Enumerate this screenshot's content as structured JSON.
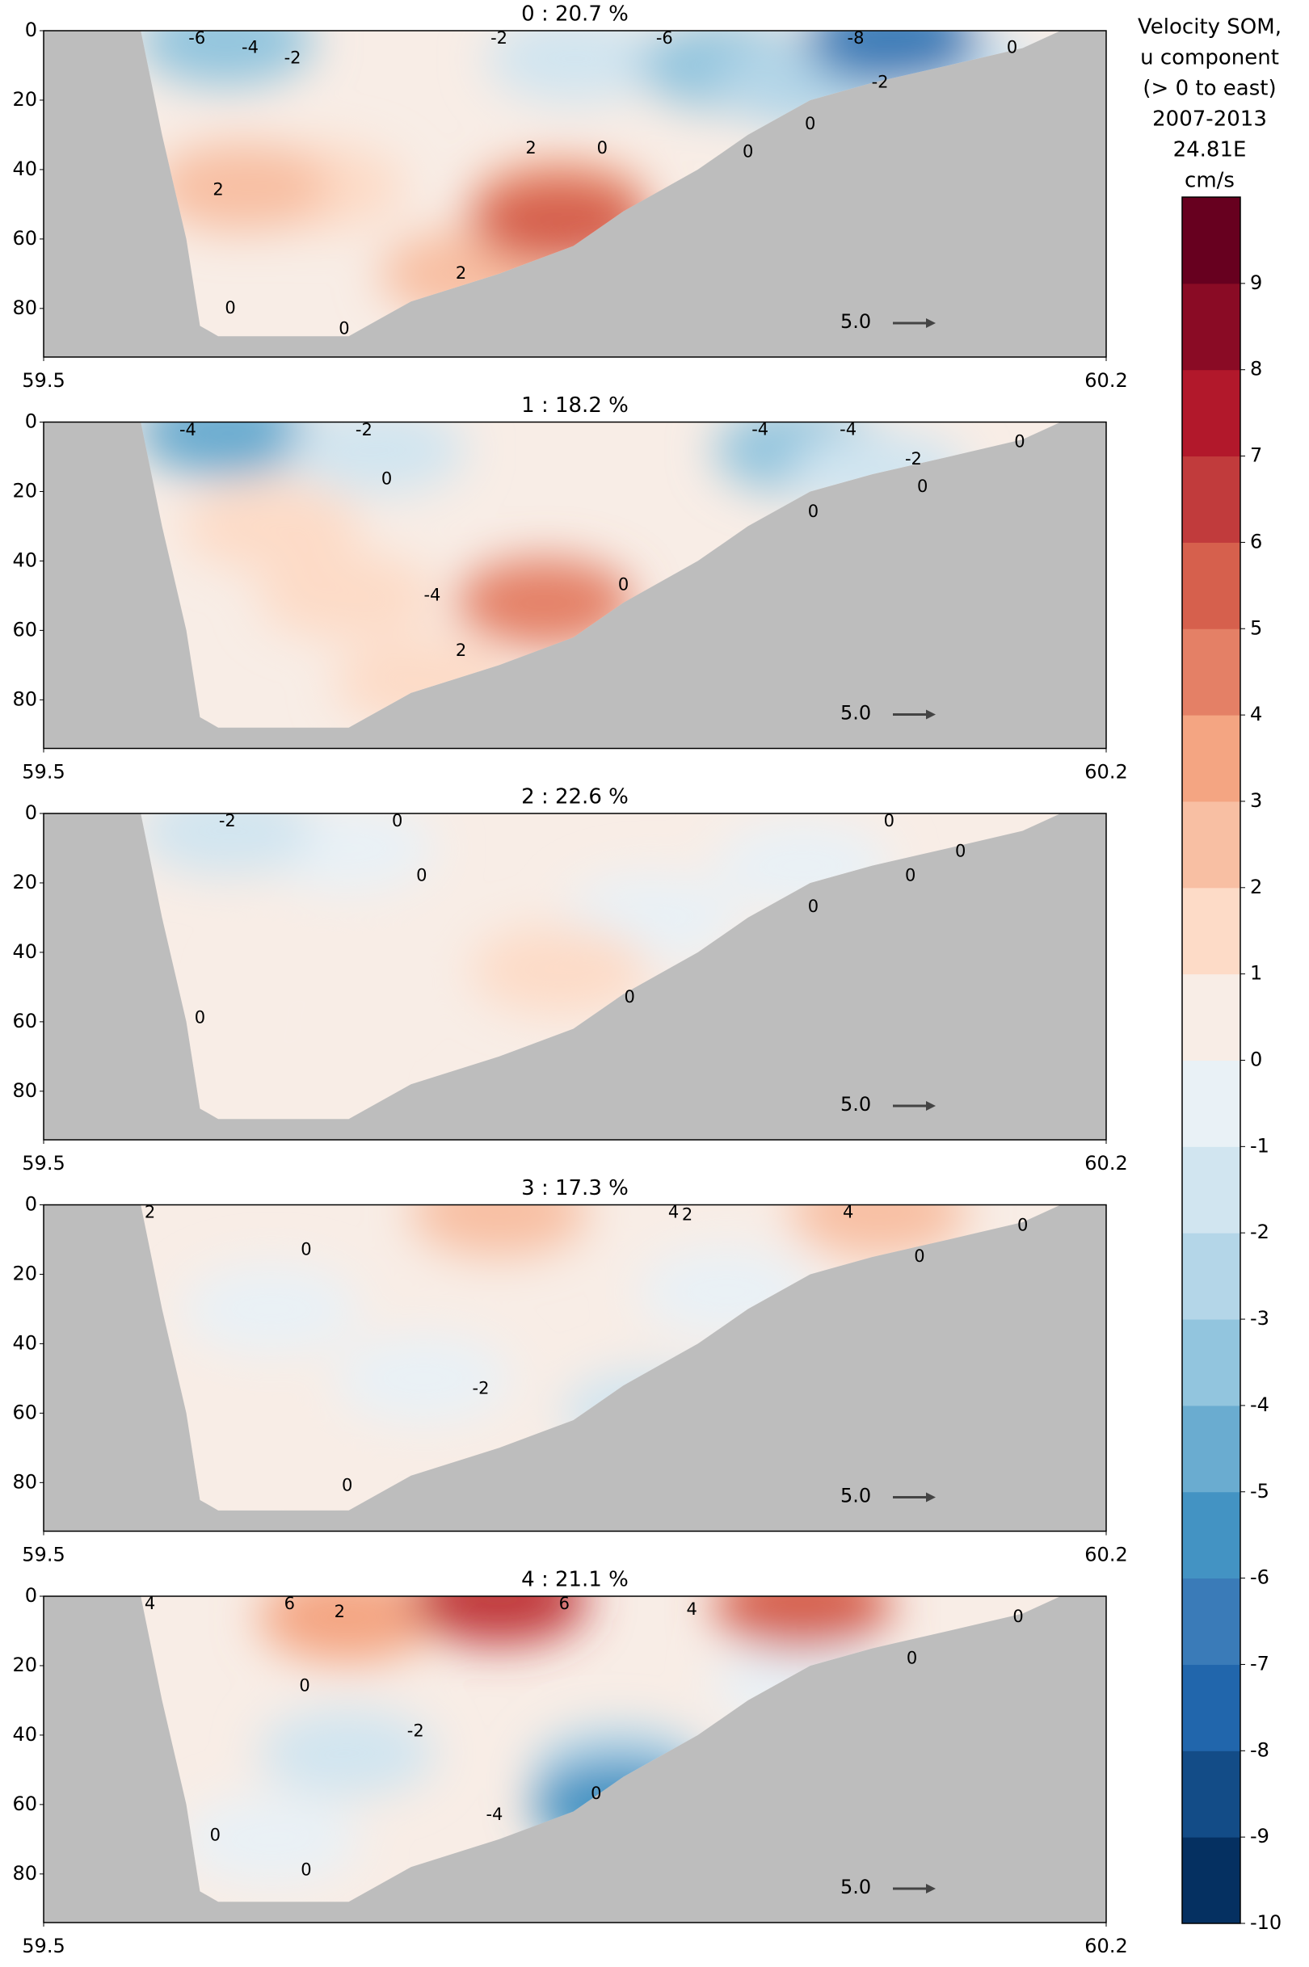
{
  "chart_data": [
    {
      "type": "contour",
      "title": "0 : 20.7 %",
      "xlim": [
        59.5,
        60.2
      ],
      "xticks": [
        59.5,
        60.2
      ],
      "ylim": [
        0,
        94
      ],
      "yticks": [
        0,
        20,
        40,
        60,
        80
      ],
      "y_inverted": true,
      "bottom_lon": [
        59.564,
        59.578,
        59.594,
        59.603,
        59.615,
        59.701,
        59.742,
        59.8,
        59.849,
        59.882,
        59.931,
        59.964,
        60.005,
        60.046,
        60.096,
        60.145,
        60.17
      ],
      "bottom_depth": [
        0,
        30,
        60,
        85,
        88,
        88,
        78,
        70,
        62,
        52,
        40,
        30,
        20,
        15,
        10,
        5,
        0
      ],
      "field": [
        {
          "lon": 59.62,
          "depth": 3,
          "value": -4
        },
        {
          "lon": 59.85,
          "depth": 8,
          "value": -2
        },
        {
          "lon": 59.95,
          "depth": 10,
          "value": -4
        },
        {
          "lon": 60.0,
          "depth": 15,
          "value": -3
        },
        {
          "lon": 60.1,
          "depth": 12,
          "value": -2
        },
        {
          "lon": 60.06,
          "depth": 3,
          "value": -7
        },
        {
          "lon": 59.68,
          "depth": 45,
          "value": 1
        },
        {
          "lon": 59.63,
          "depth": 45,
          "value": 2
        },
        {
          "lon": 59.78,
          "depth": 70,
          "value": 2
        },
        {
          "lon": 59.84,
          "depth": 50,
          "value": 3
        },
        {
          "lon": 59.84,
          "depth": 55,
          "value": 5
        }
      ],
      "contour_labels": [
        {
          "lon": 59.601,
          "depth": 2,
          "value": -6
        },
        {
          "lon": 59.636,
          "depth": 5,
          "value": -4
        },
        {
          "lon": 59.664,
          "depth": 8,
          "value": -2
        },
        {
          "lon": 59.8,
          "depth": 0,
          "value": -2
        },
        {
          "lon": 59.909,
          "depth": 0,
          "value": -6
        },
        {
          "lon": 60.035,
          "depth": 0,
          "value": -8
        },
        {
          "lon": 59.615,
          "depth": 46,
          "value": 2
        },
        {
          "lon": 59.821,
          "depth": 34,
          "value": 2
        },
        {
          "lon": 59.868,
          "depth": 34,
          "value": 0
        },
        {
          "lon": 59.964,
          "depth": 35,
          "value": 0
        },
        {
          "lon": 59.775,
          "depth": 70,
          "value": 2
        },
        {
          "lon": 59.623,
          "depth": 80,
          "value": 0
        },
        {
          "lon": 59.698,
          "depth": 86,
          "value": 0
        },
        {
          "lon": 60.005,
          "depth": 27,
          "value": 0
        },
        {
          "lon": 60.051,
          "depth": 15,
          "value": -2
        },
        {
          "lon": 60.138,
          "depth": 5,
          "value": 0
        }
      ],
      "arrow_key": "5.0"
    },
    {
      "type": "contour",
      "title": "1 : 18.2 %",
      "xlim": [
        59.5,
        60.2
      ],
      "xticks": [
        59.5,
        60.2
      ],
      "ylim": [
        0,
        94
      ],
      "yticks": [
        0,
        20,
        40,
        60,
        80
      ],
      "y_inverted": true,
      "bottom_lon": [
        59.564,
        59.578,
        59.594,
        59.603,
        59.615,
        59.701,
        59.742,
        59.8,
        59.849,
        59.882,
        59.931,
        59.964,
        60.005,
        60.046,
        60.096,
        60.145,
        60.17
      ],
      "bottom_depth": [
        0,
        30,
        60,
        85,
        88,
        88,
        78,
        70,
        62,
        52,
        40,
        30,
        20,
        15,
        10,
        5,
        0
      ],
      "field": [
        {
          "lon": 59.62,
          "depth": 3,
          "value": -5
        },
        {
          "lon": 59.72,
          "depth": 8,
          "value": -2
        },
        {
          "lon": 60.0,
          "depth": 8,
          "value": -4
        },
        {
          "lon": 60.05,
          "depth": 15,
          "value": -2
        },
        {
          "lon": 59.7,
          "depth": 50,
          "value": 1
        },
        {
          "lon": 59.65,
          "depth": 30,
          "value": 1
        },
        {
          "lon": 59.75,
          "depth": 75,
          "value": 1
        },
        {
          "lon": 59.83,
          "depth": 52,
          "value": 4
        }
      ],
      "contour_labels": [
        {
          "lon": 59.595,
          "depth": 2.5,
          "value": -4
        },
        {
          "lon": 59.711,
          "depth": 2.5,
          "value": -2
        },
        {
          "lon": 59.726,
          "depth": 16.5,
          "value": 0
        },
        {
          "lon": 59.972,
          "depth": 0.4,
          "value": -4
        },
        {
          "lon": 60.03,
          "depth": 1,
          "value": -4
        },
        {
          "lon": 60.073,
          "depth": 10.8,
          "value": -2
        },
        {
          "lon": 60.143,
          "depth": 5.8,
          "value": 0
        },
        {
          "lon": 60.079,
          "depth": 18.7,
          "value": 0
        },
        {
          "lon": 60.007,
          "depth": 26,
          "value": 0
        },
        {
          "lon": 59.756,
          "depth": 50,
          "value": -4
        },
        {
          "lon": 59.775,
          "depth": 66,
          "value": 2
        },
        {
          "lon": 59.882,
          "depth": 47,
          "value": 0
        }
      ],
      "arrow_key": "5.0"
    },
    {
      "type": "contour",
      "title": "2 : 22.6 %",
      "xlim": [
        59.5,
        60.2
      ],
      "xticks": [
        59.5,
        60.2
      ],
      "ylim": [
        0,
        94
      ],
      "yticks": [
        0,
        20,
        40,
        60,
        80
      ],
      "y_inverted": true,
      "bottom_lon": [
        59.564,
        59.578,
        59.594,
        59.603,
        59.615,
        59.701,
        59.742,
        59.8,
        59.849,
        59.882,
        59.931,
        59.964,
        60.005,
        60.046,
        60.096,
        60.145,
        60.17
      ],
      "bottom_depth": [
        0,
        30,
        60,
        85,
        88,
        88,
        78,
        70,
        62,
        52,
        40,
        30,
        20,
        15,
        10,
        5,
        0
      ],
      "field": [
        {
          "lon": 59.68,
          "depth": 50,
          "value": 0.5
        },
        {
          "lon": 59.65,
          "depth": 70,
          "value": 0.5
        },
        {
          "lon": 59.7,
          "depth": 10,
          "value": -1
        },
        {
          "lon": 60.0,
          "depth": 15,
          "value": -1
        },
        {
          "lon": 59.9,
          "depth": 30,
          "value": -0.5
        },
        {
          "lon": 59.84,
          "depth": 45,
          "value": 1
        },
        {
          "lon": 59.62,
          "depth": 5,
          "value": -2
        }
      ],
      "contour_labels": [
        {
          "lon": 59.621,
          "depth": 0.7,
          "value": -2
        },
        {
          "lon": 59.733,
          "depth": 1,
          "value": 0
        },
        {
          "lon": 59.749,
          "depth": 18,
          "value": 0
        },
        {
          "lon": 60.057,
          "depth": 0.4,
          "value": 0
        },
        {
          "lon": 60.104,
          "depth": 11,
          "value": 0
        },
        {
          "lon": 60.071,
          "depth": 18,
          "value": 0
        },
        {
          "lon": 60.007,
          "depth": 27,
          "value": 0
        },
        {
          "lon": 59.886,
          "depth": 53,
          "value": 0
        },
        {
          "lon": 59.603,
          "depth": 59,
          "value": 0
        }
      ],
      "arrow_key": "5.0"
    },
    {
      "type": "contour",
      "title": "3 : 17.3 %",
      "xlim": [
        59.5,
        60.2
      ],
      "xticks": [
        59.5,
        60.2
      ],
      "ylim": [
        0,
        94
      ],
      "yticks": [
        0,
        20,
        40,
        60,
        80
      ],
      "y_inverted": true,
      "bottom_lon": [
        59.564,
        59.578,
        59.594,
        59.603,
        59.615,
        59.701,
        59.742,
        59.8,
        59.849,
        59.882,
        59.931,
        59.964,
        60.005,
        60.046,
        60.096,
        60.145,
        60.17
      ],
      "bottom_depth": [
        0,
        30,
        60,
        85,
        88,
        88,
        78,
        70,
        62,
        52,
        40,
        30,
        20,
        15,
        10,
        5,
        0
      ],
      "field": [
        {
          "lon": 59.64,
          "depth": 80,
          "value": 0.5
        },
        {
          "lon": 59.65,
          "depth": 30,
          "value": -1
        },
        {
          "lon": 59.75,
          "depth": 50,
          "value": -1
        },
        {
          "lon": 59.95,
          "depth": 25,
          "value": -0.5
        },
        {
          "lon": 59.8,
          "depth": 2,
          "value": 2
        },
        {
          "lon": 60.05,
          "depth": 2,
          "value": 2
        },
        {
          "lon": 59.9,
          "depth": 60,
          "value": -2
        }
      ],
      "contour_labels": [
        {
          "lon": 59.57,
          "depth": 0,
          "value": 2
        },
        {
          "lon": 59.915,
          "depth": 0,
          "value": 4
        },
        {
          "lon": 59.924,
          "depth": 3,
          "value": 2
        },
        {
          "lon": 60.03,
          "depth": 0,
          "value": 4
        },
        {
          "lon": 60.145,
          "depth": 6,
          "value": 0
        },
        {
          "lon": 60.077,
          "depth": 15,
          "value": 0
        },
        {
          "lon": 59.673,
          "depth": 13,
          "value": 0
        },
        {
          "lon": 59.788,
          "depth": 53,
          "value": -2
        },
        {
          "lon": 59.7,
          "depth": 81,
          "value": 0
        }
      ],
      "arrow_key": "5.0"
    },
    {
      "type": "contour",
      "title": "4 : 21.1 %",
      "xlim": [
        59.5,
        60.2
      ],
      "xticks": [
        59.5,
        60.2
      ],
      "ylim": [
        0,
        94
      ],
      "yticks": [
        0,
        20,
        40,
        60,
        80
      ],
      "y_inverted": true,
      "bottom_lon": [
        59.564,
        59.578,
        59.594,
        59.603,
        59.615,
        59.701,
        59.742,
        59.8,
        59.849,
        59.882,
        59.931,
        59.964,
        60.005,
        60.046,
        60.096,
        60.145,
        60.17
      ],
      "bottom_depth": [
        0,
        30,
        60,
        85,
        88,
        88,
        78,
        70,
        62,
        52,
        40,
        30,
        20,
        15,
        10,
        5,
        0
      ],
      "field": [
        {
          "lon": 60.0,
          "depth": 25,
          "value": -0.5
        },
        {
          "lon": 59.65,
          "depth": 70,
          "value": -1
        },
        {
          "lon": 59.7,
          "depth": 45,
          "value": -2
        },
        {
          "lon": 59.88,
          "depth": 50,
          "value": -3
        },
        {
          "lon": 59.7,
          "depth": 6,
          "value": 3
        },
        {
          "lon": 60.0,
          "depth": 3,
          "value": 5
        },
        {
          "lon": 59.8,
          "depth": 1,
          "value": 6
        },
        {
          "lon": 59.88,
          "depth": 60,
          "value": -6
        }
      ],
      "contour_labels": [
        {
          "lon": 59.57,
          "depth": 0,
          "value": 4
        },
        {
          "lon": 59.662,
          "depth": 0,
          "value": 6
        },
        {
          "lon": 59.695,
          "depth": 4.7,
          "value": 2
        },
        {
          "lon": 59.843,
          "depth": 0.7,
          "value": 6
        },
        {
          "lon": 59.927,
          "depth": 4,
          "value": 4
        },
        {
          "lon": 60.142,
          "depth": 6,
          "value": 0
        },
        {
          "lon": 60.072,
          "depth": 18,
          "value": 0
        },
        {
          "lon": 59.672,
          "depth": 26,
          "value": 0
        },
        {
          "lon": 59.745,
          "depth": 39,
          "value": -2
        },
        {
          "lon": 59.797,
          "depth": 63,
          "value": -4
        },
        {
          "lon": 59.864,
          "depth": 57,
          "value": 0
        },
        {
          "lon": 59.613,
          "depth": 69,
          "value": 0
        },
        {
          "lon": 59.673,
          "depth": 79,
          "value": 0
        }
      ],
      "arrow_key": "5.0"
    },
    {
      "type": "colorbar",
      "title_lines": [
        "Velocity SOM,",
        "u component",
        "(> 0 to east)",
        "2007-2013",
        "24.81E",
        "cm/s"
      ],
      "ylim": [
        -10,
        10
      ],
      "yticks": [
        -10,
        -9,
        -8,
        -7,
        -6,
        -5,
        -4,
        -3,
        -2,
        -1,
        0,
        1,
        2,
        3,
        4,
        5,
        6,
        7,
        8,
        9
      ],
      "colors": [
        "#053061",
        "#134c87",
        "#2166ac",
        "#3a7bb8",
        "#4393c3",
        "#6aacd0",
        "#92c5de",
        "#b4d6e8",
        "#d1e5f0",
        "#e9f1f6",
        "#f8ede6",
        "#fddbc7",
        "#f8bfa3",
        "#f4a582",
        "#e48066",
        "#d6604d",
        "#c13b3c",
        "#b2182b",
        "#8a0b25",
        "#67001f"
      ],
      "background": "#bdbdbd"
    }
  ]
}
